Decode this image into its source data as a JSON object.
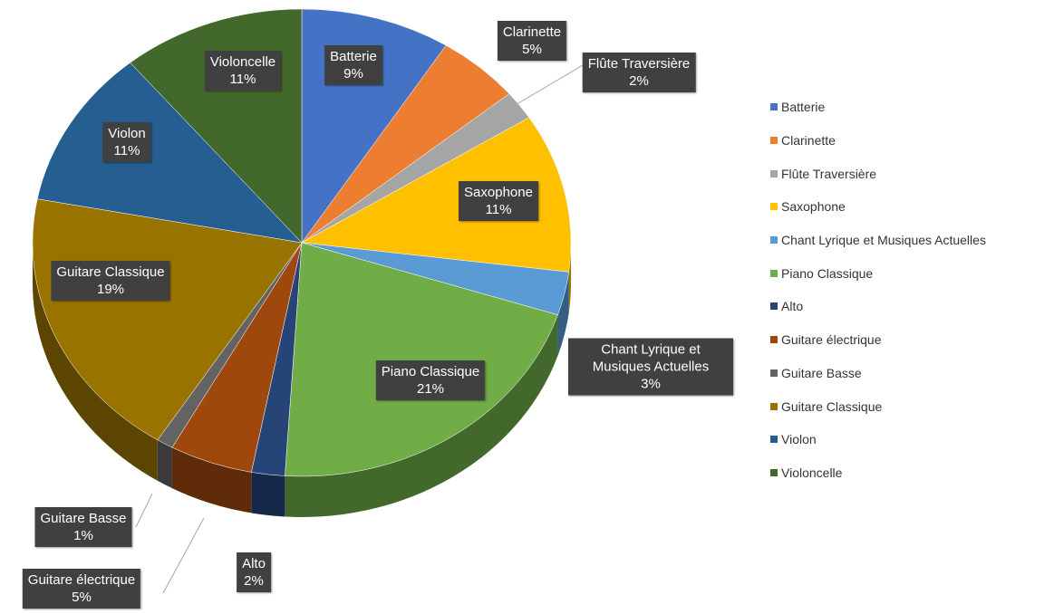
{
  "chart_data": {
    "type": "pie",
    "categories": [
      "Batterie",
      "Clarinette",
      "Flûte Traversière",
      "Saxophone",
      "Chant Lyrique et Musiques Actuelles",
      "Piano Classique",
      "Alto",
      "Guitare électrique",
      "Guitare Basse",
      "Guitare Classique",
      "Violon",
      "Violoncelle"
    ],
    "values": [
      9,
      5,
      2,
      11,
      3,
      21,
      2,
      5,
      1,
      19,
      11,
      11
    ],
    "value_labels": [
      "9%",
      "5%",
      "2%",
      "11%",
      "3%",
      "21%",
      "2%",
      "5%",
      "1%",
      "19%",
      "11%",
      "11%"
    ],
    "colors": [
      "#4472c4",
      "#ed7d31",
      "#a5a5a5",
      "#ffc000",
      "#5b9bd5",
      "#70ad47",
      "#264478",
      "#9e480e",
      "#636363",
      "#997300",
      "#255e91",
      "#43682b"
    ],
    "legend": "right"
  }
}
